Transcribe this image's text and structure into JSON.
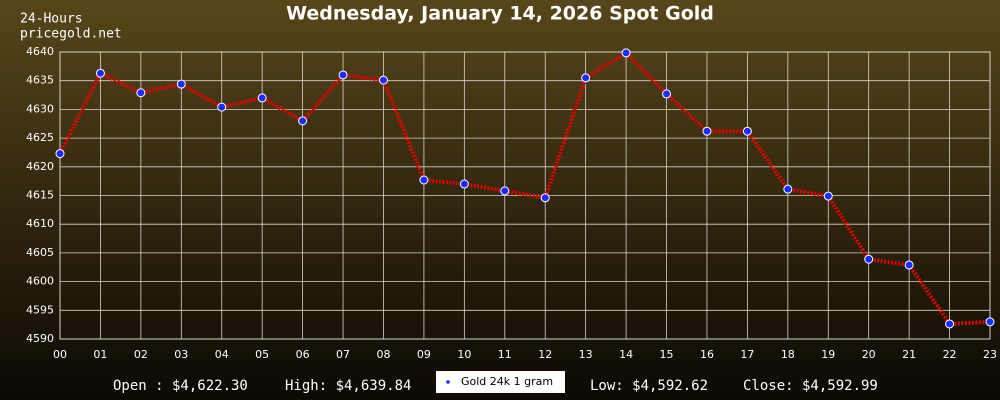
{
  "chart_data": {
    "type": "line",
    "title": "Wednesday, January 14, 2026 Spot Gold",
    "subtitle_lines": [
      "24-Hours",
      "pricegold.net"
    ],
    "categories": [
      "00",
      "01",
      "02",
      "03",
      "04",
      "05",
      "06",
      "07",
      "08",
      "09",
      "10",
      "11",
      "12",
      "13",
      "14",
      "15",
      "16",
      "17",
      "18",
      "19",
      "20",
      "21",
      "22",
      "23"
    ],
    "series": [
      {
        "name": "Gold 24k 1 gram",
        "color": "#e00000",
        "marker_color": "#1a2cff",
        "values": [
          4622.3,
          4636.3,
          4632.9,
          4634.4,
          4630.4,
          4632.0,
          4628.0,
          4636.0,
          4635.1,
          4617.7,
          4617.0,
          4615.8,
          4614.6,
          4635.5,
          4639.84,
          4632.7,
          4626.2,
          4626.2,
          4616.1,
          4614.9,
          4603.9,
          4602.9,
          4592.62,
          4592.99
        ]
      }
    ],
    "ylim": [
      4590,
      4640
    ],
    "yticks": [
      4590,
      4595,
      4600,
      4605,
      4610,
      4615,
      4620,
      4625,
      4630,
      4635,
      4640
    ],
    "grid": true,
    "stats": [
      "Open : $4,622.30",
      "High: $4,639.84",
      "Low: $4,592.62",
      "Close: $4,592.99"
    ]
  }
}
